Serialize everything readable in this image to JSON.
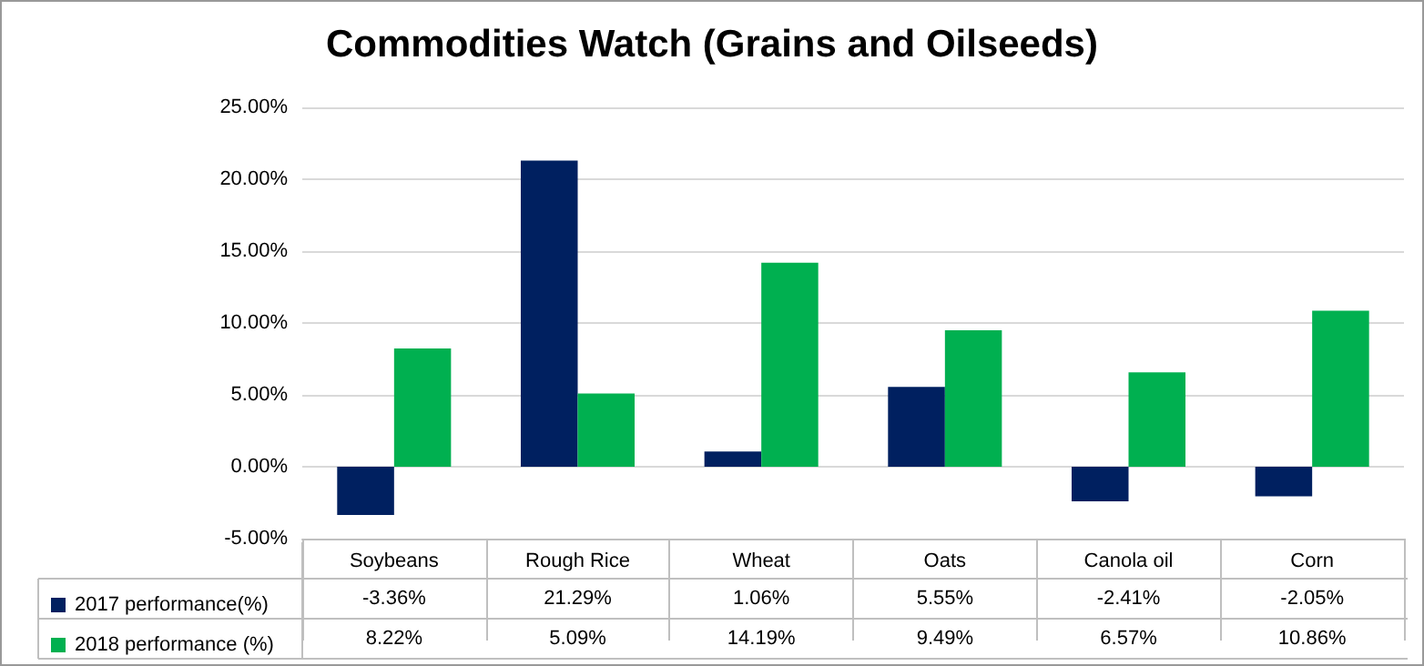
{
  "chart_data": {
    "type": "bar",
    "title": "Commodities Watch (Grains and Oilseeds)",
    "categories": [
      "Soybeans",
      "Rough Rice",
      "Wheat",
      "Oats",
      "Canola oil",
      "Corn"
    ],
    "series": [
      {
        "name": "2017 performance(%)",
        "color": "#002060",
        "values": [
          -3.36,
          21.29,
          1.06,
          5.55,
          -2.41,
          -2.05
        ],
        "value_labels": [
          "-3.36%",
          "21.29%",
          "1.06%",
          "5.55%",
          "-2.41%",
          "-2.05%"
        ]
      },
      {
        "name": "2018 performance (%)",
        "color": "#00b050",
        "values": [
          8.22,
          5.09,
          14.19,
          9.49,
          6.57,
          10.86
        ],
        "value_labels": [
          "8.22%",
          "5.09%",
          "14.19%",
          "9.49%",
          "6.57%",
          "10.86%"
        ]
      }
    ],
    "ylim": [
      -5,
      25
    ],
    "yticks": [
      {
        "value": -5,
        "label": "-5.00%"
      },
      {
        "value": 0,
        "label": "0.00%"
      },
      {
        "value": 5,
        "label": "5.00%"
      },
      {
        "value": 10,
        "label": "10.00%"
      },
      {
        "value": 15,
        "label": "15.00%"
      },
      {
        "value": 20,
        "label": "20.00%"
      },
      {
        "value": 25,
        "label": "25.00%"
      }
    ],
    "grid": "y",
    "legend": "bottom"
  }
}
